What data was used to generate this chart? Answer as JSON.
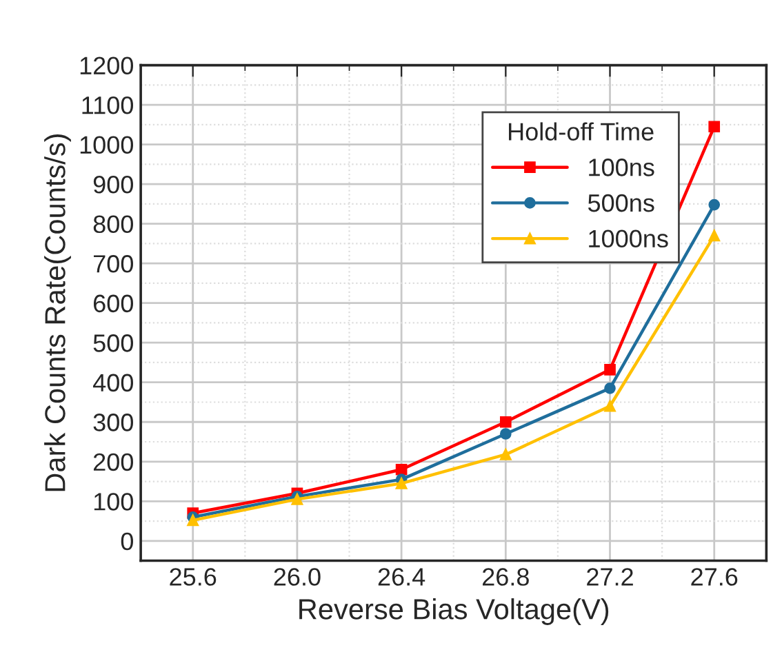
{
  "chart_data": {
    "type": "line",
    "xlabel": "Reverse Bias Voltage(V)",
    "ylabel": "Dark Counts Rate(Counts/s)",
    "legend_title": "Hold-off Time",
    "legend": "top right",
    "grid": true,
    "x": [
      25.6,
      26.0,
      26.4,
      26.8,
      27.2,
      27.6
    ],
    "xlim": [
      25.4,
      27.8
    ],
    "xticks": [
      {
        "value": 25.6,
        "label": "25.6"
      },
      {
        "value": 26.0,
        "label": "26.0"
      },
      {
        "value": 26.4,
        "label": "26.4"
      },
      {
        "value": 26.8,
        "label": "26.8"
      },
      {
        "value": 27.2,
        "label": "27.2"
      },
      {
        "value": 27.6,
        "label": "27.6"
      }
    ],
    "ylim": [
      -50,
      1200
    ],
    "yticks": [
      0,
      100,
      200,
      300,
      400,
      500,
      600,
      700,
      800,
      900,
      1000,
      1100,
      1200
    ],
    "series": [
      {
        "name": "100ns",
        "color": "#ff0000",
        "marker": "square",
        "values": [
          70,
          120,
          180,
          300,
          432,
          1045
        ]
      },
      {
        "name": "500ns",
        "color": "#1f6e9c",
        "marker": "circle",
        "values": [
          60,
          112,
          155,
          270,
          385,
          848
        ]
      },
      {
        "name": "1000ns",
        "color": "#ffc000",
        "marker": "triangle",
        "values": [
          52,
          105,
          145,
          218,
          340,
          770
        ]
      }
    ]
  }
}
